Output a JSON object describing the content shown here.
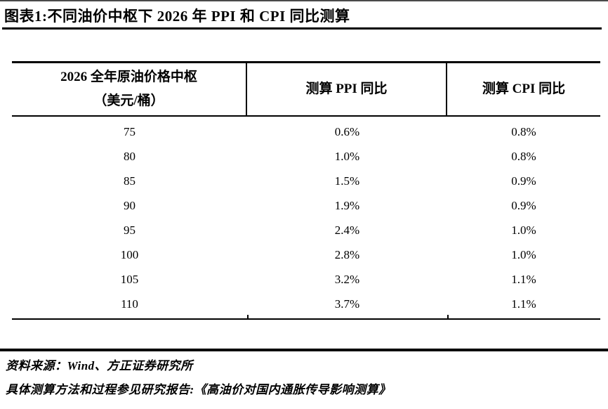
{
  "title": "图表1:不同油价中枢下 2026 年 PPI 和 CPI 同比测算",
  "table": {
    "headers": {
      "col1_line1": "2026 全年原油价格中枢",
      "col1_line2": "（美元/桶）",
      "col2": "测算 PPI 同比",
      "col3": "测算 CPI 同比"
    },
    "rows": [
      {
        "price": "75",
        "ppi": "0.6%",
        "cpi": "0.8%"
      },
      {
        "price": "80",
        "ppi": "1.0%",
        "cpi": "0.8%"
      },
      {
        "price": "85",
        "ppi": "1.5%",
        "cpi": "0.9%"
      },
      {
        "price": "90",
        "ppi": "1.9%",
        "cpi": "0.9%"
      },
      {
        "price": "95",
        "ppi": "2.4%",
        "cpi": "1.0%"
      },
      {
        "price": "100",
        "ppi": "2.8%",
        "cpi": "1.0%"
      },
      {
        "price": "105",
        "ppi": "3.2%",
        "cpi": "1.1%"
      },
      {
        "price": "110",
        "ppi": "3.7%",
        "cpi": "1.1%"
      }
    ]
  },
  "footer": {
    "source": "资料来源：Wind、方正证券研究所",
    "note": "具体测算方法和过程参见研究报告:《高油价对国内通胀传导影响测算》"
  },
  "colors": {
    "text": "#000000",
    "background": "#ffffff",
    "rule": "#000000"
  }
}
